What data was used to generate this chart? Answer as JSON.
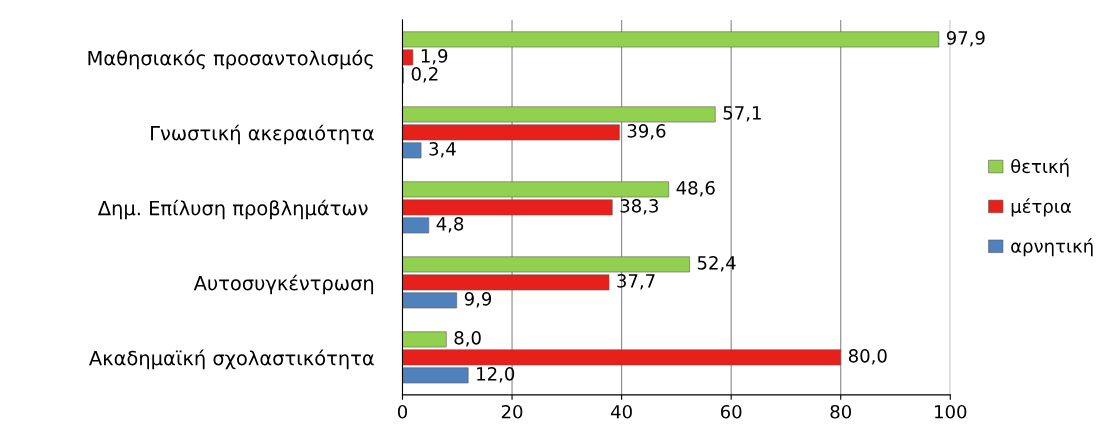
{
  "chart_data": {
    "type": "bar",
    "orientation": "horizontal",
    "categories": [
      "Μαθησιακός προσαντολισμός",
      "Γνωστική ακεραιότητα",
      "Δημ. Επίλυση προβλημάτων ",
      "Αυτοσυγκέντρωση",
      "Ακαδημαϊκή σχολαστικότητα"
    ],
    "series": [
      {
        "name": "θετική",
        "color": "#92d050",
        "values": [
          97.9,
          57.1,
          48.6,
          52.4,
          8.0
        ],
        "value_labels": [
          "97,9",
          "57,1",
          "48,6",
          "52,4",
          "8,0"
        ]
      },
      {
        "name": "μέτρια",
        "color": "#e8201c",
        "values": [
          1.9,
          39.6,
          38.3,
          37.7,
          80.0
        ],
        "value_labels": [
          "1,9",
          "39,6",
          "38,3",
          "37,7",
          "80,0"
        ]
      },
      {
        "name": "αρνητική",
        "color": "#4f81bd",
        "values": [
          0.2,
          3.4,
          4.8,
          9.9,
          12.0
        ],
        "value_labels": [
          "0,2",
          "3,4",
          "4,8",
          "9,9",
          "12,0"
        ]
      }
    ],
    "xlim": [
      0,
      100
    ],
    "xticks": [
      0,
      20,
      40,
      60,
      80,
      100
    ],
    "grid": "x",
    "legend": "right"
  }
}
